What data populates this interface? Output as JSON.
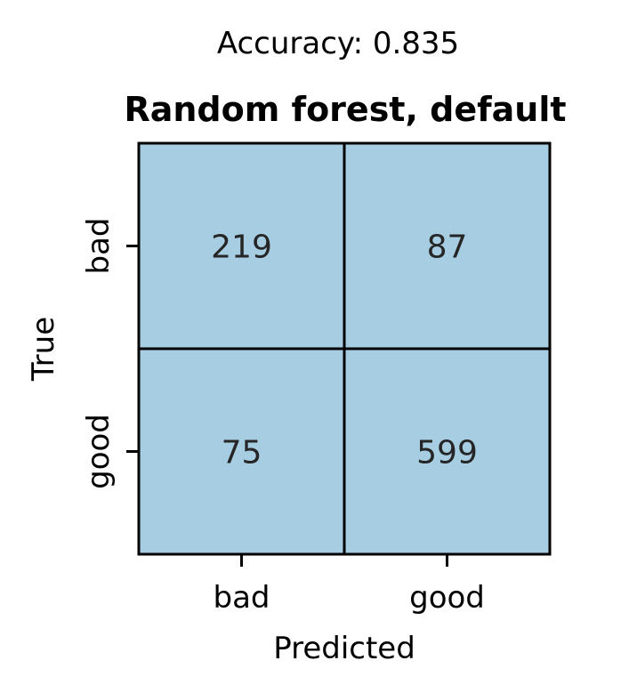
{
  "header": {
    "suptitle": "Accuracy: 0.835"
  },
  "chart_data": {
    "type": "heatmap",
    "title": "Random forest, default",
    "xlabel": "Predicted",
    "ylabel": "True",
    "x_categories": [
      "bad",
      "good"
    ],
    "y_categories": [
      "bad",
      "good"
    ],
    "values": [
      [
        219,
        87
      ],
      [
        75,
        599
      ]
    ],
    "cell_color": "#a6cde2",
    "border_color": "#000000",
    "colorbar": false
  }
}
